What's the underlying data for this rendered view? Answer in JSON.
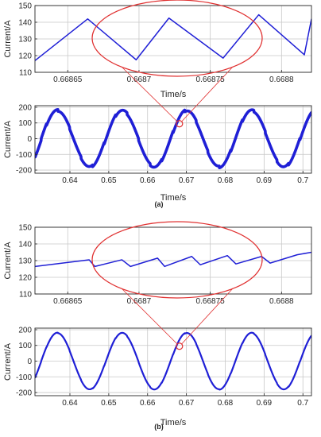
{
  "chart_data": [
    {
      "panel": "a",
      "kind": "zoom",
      "type": "line",
      "xlabel": "Time/s",
      "ylabel": "Current/A",
      "xlim": [
        0.668627,
        0.668821
      ],
      "ylim": [
        110,
        150
      ],
      "xticks": [
        0.66865,
        0.6687,
        0.66875,
        0.6688
      ],
      "xtick_labels": [
        "0.66865",
        "0.6687",
        "0.66875",
        "0.6688"
      ],
      "yticks": [
        110,
        120,
        130,
        140,
        150
      ],
      "grid": true,
      "series": [
        {
          "x": [
            0.668627,
            0.668664,
            0.668698,
            0.668721,
            0.668759,
            0.668784,
            0.668816,
            0.668821
          ],
          "y": [
            117,
            142,
            117.5,
            142.5,
            118.5,
            144.5,
            120.5,
            142
          ]
        }
      ]
    },
    {
      "panel": "a",
      "kind": "full",
      "type": "line",
      "xlabel": "Time/s",
      "ylabel": "Current/A",
      "xlim": [
        0.631,
        0.7022
      ],
      "ylim": [
        -220,
        210
      ],
      "xticks": [
        0.64,
        0.65,
        0.66,
        0.67,
        0.68,
        0.69,
        0.7
      ],
      "xtick_labels": [
        "0.64",
        "0.65",
        "0.66",
        "0.67",
        "0.68",
        "0.69",
        "0.7"
      ],
      "yticks": [
        -200,
        -100,
        0,
        100,
        200
      ],
      "grid": true,
      "waveform": {
        "shape": "sinusoid",
        "amplitude": 180,
        "frequency": 60,
        "zero_crossing": 0.6326,
        "ripple": 12
      }
    },
    {
      "panel": "b",
      "kind": "zoom",
      "type": "line",
      "xlabel": "",
      "ylabel": "Current/A",
      "xlim": [
        0.668627,
        0.668821
      ],
      "ylim": [
        110,
        150
      ],
      "xticks": [
        0.66865,
        0.6687,
        0.66875,
        0.6688
      ],
      "xtick_labels": [
        "0.66865",
        "0.6687",
        "0.66875",
        "0.6688"
      ],
      "yticks": [
        110,
        120,
        130,
        140,
        150
      ],
      "grid": true,
      "series": [
        {
          "x": [
            0.668627,
            0.668665,
            0.668669,
            0.668688,
            0.668694,
            0.668713,
            0.668718,
            0.668737,
            0.668743,
            0.668762,
            0.668768,
            0.668786,
            0.668792,
            0.668811,
            0.668821
          ],
          "y": [
            126.5,
            130.5,
            126.5,
            130.5,
            126.5,
            131.5,
            126.5,
            132.5,
            127.5,
            133,
            128,
            132.5,
            128.5,
            133.5,
            135
          ]
        }
      ]
    },
    {
      "panel": "b",
      "kind": "full",
      "type": "line",
      "xlabel": "Time/s",
      "ylabel": "Current/A",
      "xlim": [
        0.631,
        0.7022
      ],
      "ylim": [
        -220,
        210
      ],
      "xticks": [
        0.64,
        0.65,
        0.66,
        0.67,
        0.68,
        0.69,
        0.7
      ],
      "xtick_labels": [
        "0.64",
        "0.65",
        "0.66",
        "0.67",
        "0.68",
        "0.69",
        "0.7"
      ],
      "yticks": [
        -200,
        -100,
        0,
        100,
        200
      ],
      "grid": true,
      "waveform": {
        "shape": "sinusoid",
        "amplitude": 180,
        "frequency": 60,
        "zero_crossing": 0.6326,
        "ripple": 3
      }
    }
  ],
  "zoom_marker": {
    "t": 0.6682,
    "i": 95
  },
  "captions": [
    "(a)",
    "(b)"
  ],
  "colors": {
    "line": "#1f1fd6",
    "highlight": "#e03030",
    "grid": "#c8c8c8",
    "axis": "#262626"
  }
}
